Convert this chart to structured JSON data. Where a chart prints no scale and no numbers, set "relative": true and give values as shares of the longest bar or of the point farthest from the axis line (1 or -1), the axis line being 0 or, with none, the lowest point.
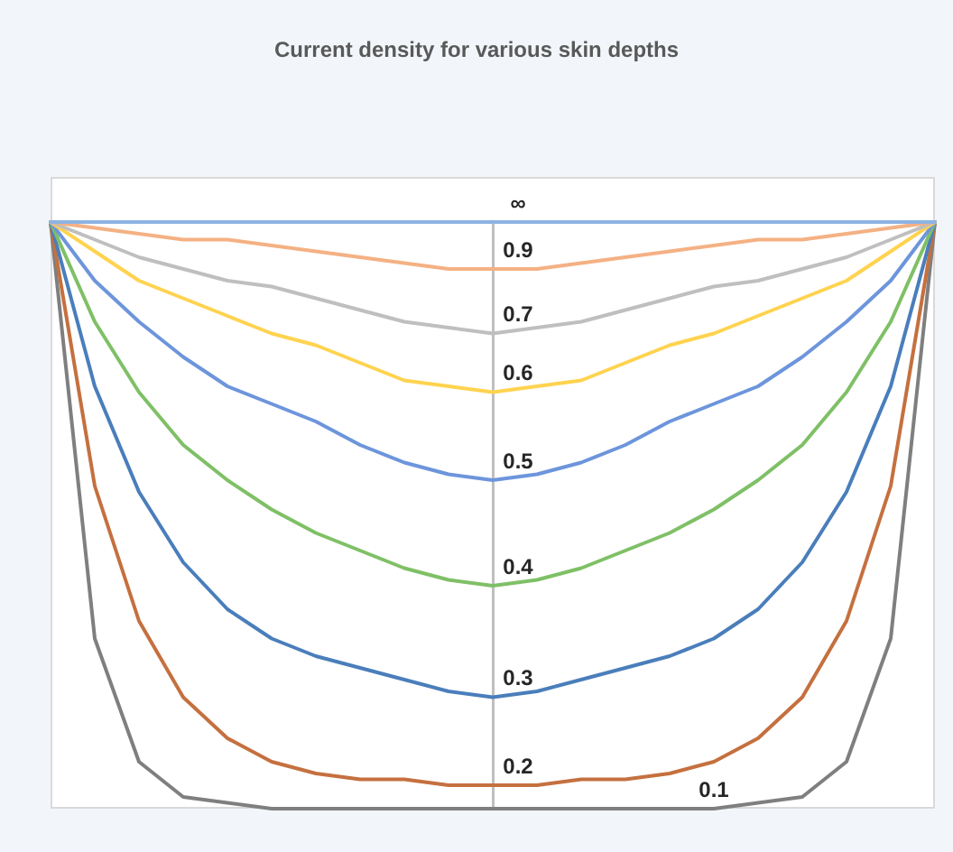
{
  "chart_data": {
    "type": "line",
    "title": "Current density for various skin depths",
    "relative": true,
    "legend": false,
    "marker": "none",
    "line_style": "solid",
    "categories": [
      null,
      null,
      null,
      null,
      null,
      null,
      null,
      null,
      null,
      null,
      null,
      null,
      null,
      null,
      null,
      null,
      null,
      null,
      null,
      null,
      null
    ],
    "series": [
      {
        "name": "∞",
        "color": "#8db3e2",
        "values": [
          1,
          1,
          1,
          1,
          1,
          1,
          1,
          1,
          1,
          1,
          1,
          1,
          1,
          1,
          1,
          1,
          1,
          1,
          1,
          1,
          1
        ]
      },
      {
        "name": "0.9",
        "color": "#f4b183",
        "values": [
          1,
          0.99,
          0.98,
          0.97,
          0.97,
          0.96,
          0.95,
          0.94,
          0.93,
          0.92,
          0.92,
          0.92,
          0.93,
          0.94,
          0.95,
          0.96,
          0.97,
          0.97,
          0.98,
          0.99,
          1
        ]
      },
      {
        "name": "0.7",
        "color": "#bfbfbf",
        "values": [
          1,
          0.97,
          0.94,
          0.92,
          0.9,
          0.89,
          0.87,
          0.85,
          0.83,
          0.82,
          0.81,
          0.82,
          0.83,
          0.85,
          0.87,
          0.89,
          0.9,
          0.92,
          0.94,
          0.97,
          1
        ]
      },
      {
        "name": "0.6",
        "color": "#ffd34f",
        "values": [
          1,
          0.95,
          0.9,
          0.87,
          0.84,
          0.81,
          0.79,
          0.76,
          0.73,
          0.72,
          0.71,
          0.72,
          0.73,
          0.76,
          0.79,
          0.81,
          0.84,
          0.87,
          0.9,
          0.95,
          1
        ]
      },
      {
        "name": "0.5",
        "color": "#6d95dc",
        "values": [
          1,
          0.9,
          0.83,
          0.77,
          0.72,
          0.69,
          0.66,
          0.62,
          0.59,
          0.57,
          0.56,
          0.57,
          0.59,
          0.62,
          0.66,
          0.69,
          0.72,
          0.77,
          0.83,
          0.9,
          1
        ]
      },
      {
        "name": "0.4",
        "color": "#7fc066",
        "values": [
          1,
          0.83,
          0.71,
          0.62,
          0.56,
          0.51,
          0.47,
          0.44,
          0.41,
          0.39,
          0.38,
          0.39,
          0.41,
          0.44,
          0.47,
          0.51,
          0.56,
          0.62,
          0.71,
          0.83,
          1
        ]
      },
      {
        "name": "0.3",
        "color": "#4a7ebb",
        "values": [
          1,
          0.72,
          0.54,
          0.42,
          0.34,
          0.29,
          0.26,
          0.24,
          0.22,
          0.2,
          0.19,
          0.2,
          0.22,
          0.24,
          0.26,
          0.29,
          0.34,
          0.42,
          0.54,
          0.72,
          1
        ]
      },
      {
        "name": "0.2",
        "color": "#c5703f",
        "values": [
          1,
          0.55,
          0.32,
          0.19,
          0.12,
          0.08,
          0.06,
          0.05,
          0.05,
          0.04,
          0.04,
          0.04,
          0.05,
          0.05,
          0.06,
          0.08,
          0.12,
          0.19,
          0.32,
          0.55,
          1
        ]
      },
      {
        "name": "0.1",
        "color": "#7f7f7f",
        "values": [
          1,
          0.29,
          0.08,
          0.02,
          0.01,
          0,
          0,
          0,
          0,
          0,
          0,
          0,
          0,
          0,
          0,
          0,
          0.01,
          0.02,
          0.08,
          0.29,
          1
        ]
      }
    ]
  }
}
